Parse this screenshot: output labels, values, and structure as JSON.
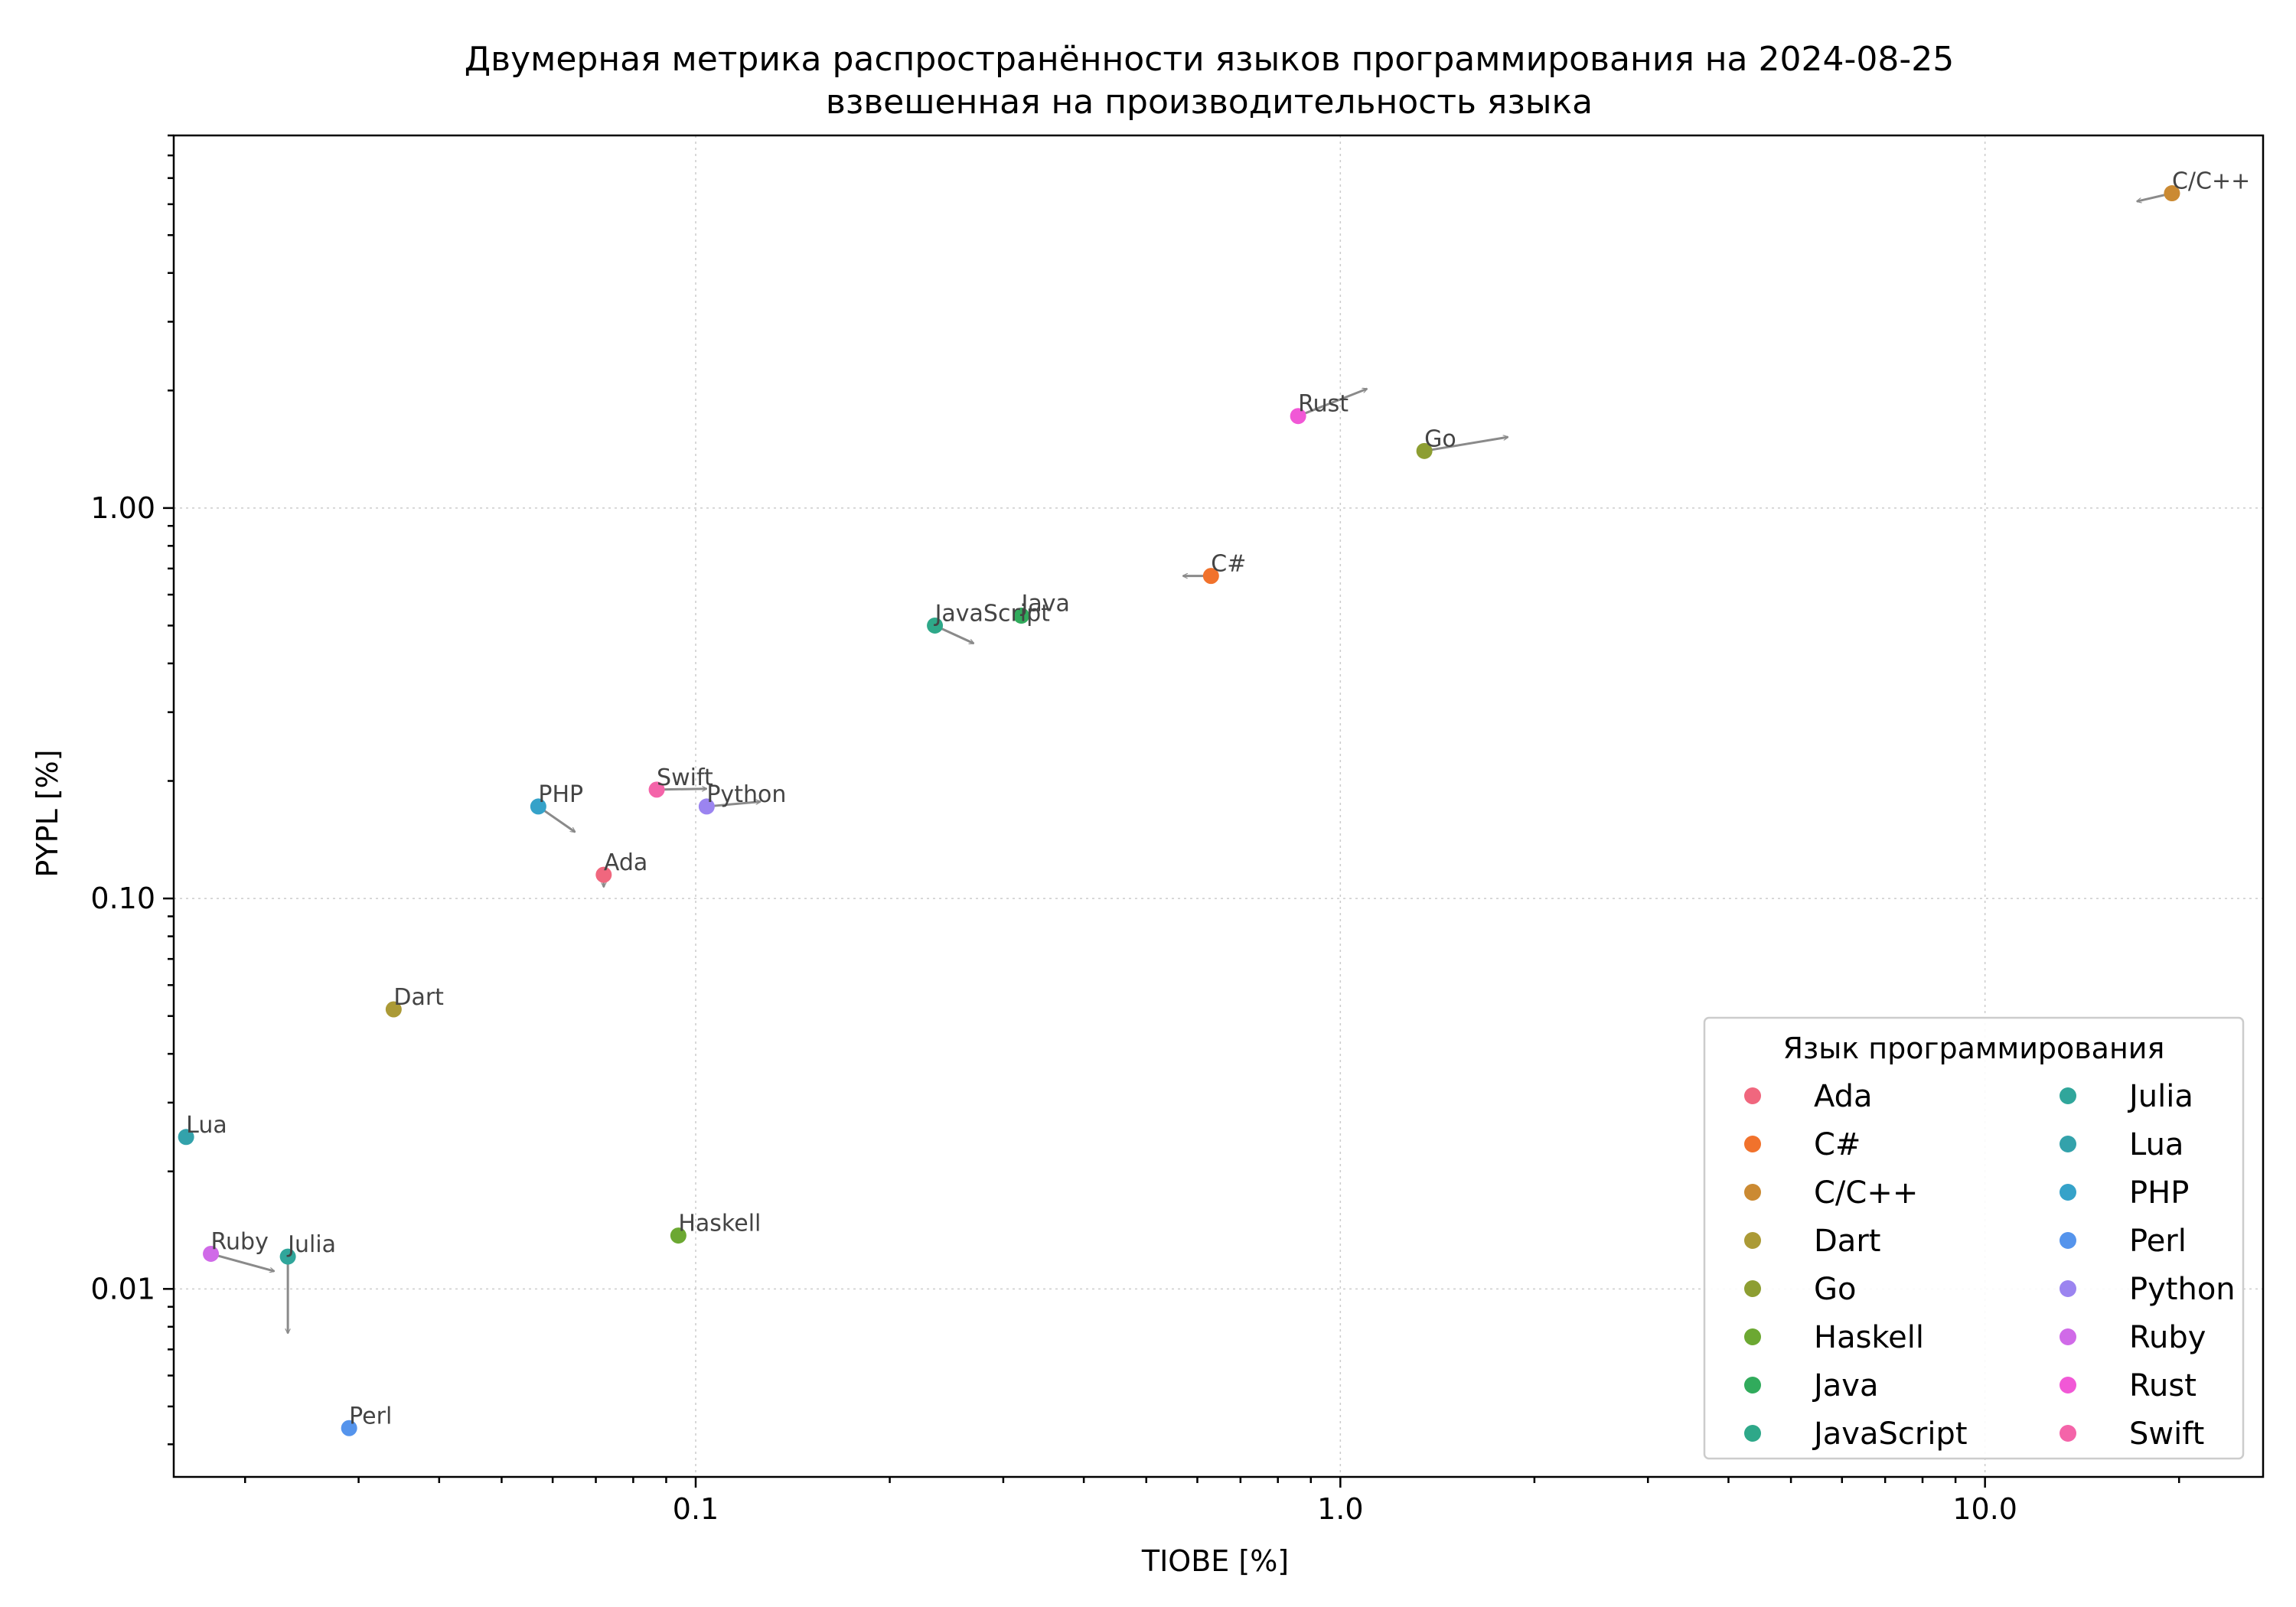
{
  "chart_data": {
    "type": "scatter",
    "title": "Двумерная метрика распространённости языков программирования на 2024-08-25",
    "subtitle": "взвешенная на производительность языка",
    "xlabel": "TIOBE [%]",
    "ylabel": "PYPL [%]",
    "xscale": "log",
    "yscale": "log",
    "xlim": [
      0.0155,
      27
    ],
    "ylim": [
      0.0033,
      9.0
    ],
    "xticks": [
      {
        "value": 0.1,
        "label": "0.1"
      },
      {
        "value": 1.0,
        "label": "1.0"
      },
      {
        "value": 10.0,
        "label": "10.0"
      }
    ],
    "yticks": [
      {
        "value": 0.01,
        "label": "0.01"
      },
      {
        "value": 0.1,
        "label": "0.10"
      },
      {
        "value": 1.0,
        "label": "1.00"
      }
    ],
    "grid": true,
    "legend": {
      "title": "Язык программирования",
      "placement": "bottom-right",
      "columns": 2
    },
    "series": [
      {
        "name": "Ada",
        "color": "#f0677e",
        "x": 0.072,
        "y": 0.115,
        "arrow_to": [
          0.072,
          0.107
        ]
      },
      {
        "name": "C#",
        "color": "#f1722c",
        "x": 0.63,
        "y": 0.67,
        "arrow_to": [
          0.57,
          0.67
        ]
      },
      {
        "name": "C/C++",
        "color": "#cb8a32",
        "x": 19.5,
        "y": 6.4,
        "arrow_to": [
          17.2,
          6.1
        ]
      },
      {
        "name": "Dart",
        "color": "#ab9a36",
        "x": 0.034,
        "y": 0.052
      },
      {
        "name": "Go",
        "color": "#8d9e32",
        "x": 1.35,
        "y": 1.4,
        "arrow_to": [
          1.82,
          1.52
        ]
      },
      {
        "name": "Haskell",
        "color": "#6ca832",
        "x": 0.094,
        "y": 0.0137
      },
      {
        "name": "Java",
        "color": "#31ab5c",
        "x": 0.32,
        "y": 0.53
      },
      {
        "name": "JavaScript",
        "color": "#2ea889",
        "x": 0.235,
        "y": 0.5,
        "arrow_to": [
          0.27,
          0.45
        ]
      },
      {
        "name": "Julia",
        "color": "#30a69b",
        "x": 0.0233,
        "y": 0.0121,
        "arrow_to": [
          0.0233,
          0.0077
        ]
      },
      {
        "name": "Lua",
        "color": "#33a2ab",
        "x": 0.0162,
        "y": 0.0245
      },
      {
        "name": "PHP",
        "color": "#35a2c9",
        "x": 0.057,
        "y": 0.172,
        "arrow_to": [
          0.065,
          0.148
        ]
      },
      {
        "name": "Perl",
        "color": "#5594ec",
        "x": 0.029,
        "y": 0.0044
      },
      {
        "name": "Python",
        "color": "#9b84f0",
        "x": 0.104,
        "y": 0.172,
        "arrow_to": [
          0.126,
          0.177
        ]
      },
      {
        "name": "Ruby",
        "color": "#d06ae8",
        "x": 0.0177,
        "y": 0.0123,
        "arrow_to": [
          0.0222,
          0.0111
        ]
      },
      {
        "name": "Rust",
        "color": "#f158d6",
        "x": 0.86,
        "y": 1.72,
        "arrow_to": [
          1.1,
          2.02
        ]
      },
      {
        "name": "Swift",
        "color": "#f464a9",
        "x": 0.087,
        "y": 0.19,
        "arrow_to": [
          0.104,
          0.191
        ]
      }
    ]
  }
}
